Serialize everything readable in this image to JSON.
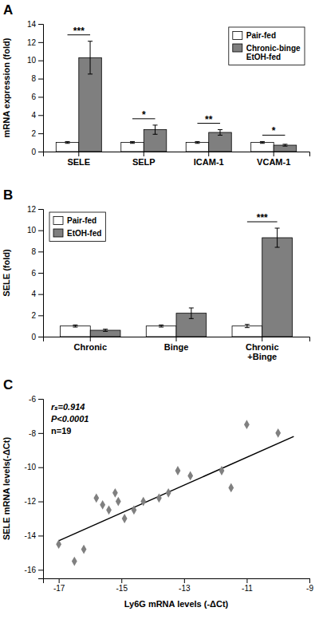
{
  "chart_data": [
    {
      "type": "bar",
      "title": "A",
      "categories": [
        "SELE",
        "SELP",
        "ICAM-1",
        "VCAM-1"
      ],
      "series": [
        {
          "name": "Pair-fed",
          "color": "#ffffff",
          "values": [
            1.0,
            1.0,
            1.0,
            1.0
          ],
          "errors": [
            0.1,
            0.1,
            0.1,
            0.1
          ]
        },
        {
          "name": "Chronic-binge\nEtOH-fed",
          "color": "#7f7f7f",
          "values": [
            10.3,
            2.4,
            2.1,
            0.7
          ],
          "errors": [
            1.8,
            0.5,
            0.3,
            0.1
          ]
        }
      ],
      "ylabel": "mRNA expression (fold)",
      "ylim": [
        0,
        14
      ],
      "yticks": [
        0,
        2,
        4,
        6,
        8,
        10,
        12,
        14
      ],
      "legend": "upper right",
      "annotations": [
        {
          "text": "***",
          "category": "SELE"
        },
        {
          "text": "*",
          "category": "SELP"
        },
        {
          "text": "**",
          "category": "ICAM-1"
        },
        {
          "text": "*",
          "category": "VCAM-1"
        }
      ]
    },
    {
      "type": "bar",
      "title": "B",
      "categories": [
        "Chronic",
        "Binge",
        "Chronic\n+Binge"
      ],
      "series": [
        {
          "name": "Pair-fed",
          "color": "#ffffff",
          "values": [
            1.0,
            1.0,
            1.0
          ],
          "errors": [
            0.1,
            0.1,
            0.15
          ]
        },
        {
          "name": "EtOH-fed",
          "color": "#7f7f7f",
          "values": [
            0.6,
            2.2,
            9.3
          ],
          "errors": [
            0.1,
            0.5,
            0.9
          ]
        }
      ],
      "ylabel": "SELE (fold)",
      "ylim": [
        0,
        12
      ],
      "yticks": [
        0,
        2,
        4,
        6,
        8,
        10,
        12
      ],
      "legend": "upper left",
      "annotations": [
        {
          "text": "***",
          "category": "Chronic\n+Binge"
        }
      ]
    },
    {
      "type": "scatter",
      "title": "C",
      "series": [
        {
          "type": "scatter",
          "marker": "diamond",
          "color": "#808080",
          "x": [
            -17.0,
            -16.5,
            -16.2,
            -15.8,
            -15.6,
            -15.4,
            -15.2,
            -15.1,
            -14.9,
            -14.6,
            -14.3,
            -13.8,
            -13.5,
            -13.2,
            -12.8,
            -11.8,
            -11.5,
            -11.0,
            -10.0
          ],
          "values": [
            -14.5,
            -15.5,
            -14.8,
            -11.8,
            -12.2,
            -12.5,
            -11.5,
            -12.0,
            -13.0,
            -12.5,
            -12.0,
            -11.8,
            -11.5,
            -10.2,
            -10.5,
            -10.2,
            -11.2,
            -7.5,
            -8.0
          ]
        },
        {
          "type": "line",
          "color": "#000000",
          "x": [
            -17.0,
            -9.5
          ],
          "values": [
            -14.3,
            -8.2
          ]
        }
      ],
      "xlabel": "Ly6G mRNA levels (-ΔCt)",
      "ylabel": "SELE mRNA levels(-ΔCt)",
      "xlim": [
        -17.5,
        -9.0
      ],
      "ylim": [
        -16.5,
        -6.0
      ],
      "xticks": [
        -17,
        -15,
        -13,
        -11,
        -9
      ],
      "yticks": [
        -16,
        -14,
        -12,
        -10,
        -8,
        -6
      ],
      "annotations": [
        "rₛ=0.914",
        "P<0.0001",
        "n=19"
      ]
    }
  ]
}
